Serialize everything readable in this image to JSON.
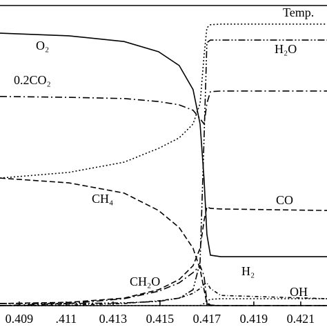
{
  "chart_data": {
    "type": "line",
    "x": [
      0.40818,
      0.41112,
      0.41347,
      0.41494,
      0.41582,
      0.41641,
      0.41671,
      0.41688,
      0.417,
      0.41715,
      0.41759,
      0.42212
    ],
    "xlim": [
      0.40818,
      0.42212
    ],
    "xticks": [
      0.409,
      {
        "value": 0.411,
        "label": ".411"
      },
      0.413,
      0.415,
      0.417,
      0.419,
      0.421
    ],
    "ylim": [
      0,
      1
    ],
    "series": [
      {
        "name": "O₂",
        "color": "#000000",
        "dash": "none",
        "values": [
          0.908,
          0.899,
          0.88,
          0.846,
          0.8,
          0.72,
          0.605,
          0.421,
          0.237,
          0.168,
          0.163,
          0.163
        ]
      },
      {
        "name": "0.2CO₂",
        "color": "#000000",
        "dash": "10,4,2,4",
        "values": [
          0.697,
          0.694,
          0.69,
          0.68,
          0.669,
          0.651,
          0.623,
          0.605,
          0.674,
          0.713,
          0.715,
          0.715
        ]
      },
      {
        "name": "Temp.",
        "color": "#000000",
        "dash": "2,3",
        "values": [
          0.425,
          0.444,
          0.478,
          0.524,
          0.559,
          0.605,
          0.674,
          0.834,
          0.926,
          0.936,
          0.938,
          0.938
        ]
      },
      {
        "name": "H₂O",
        "color": "#000000",
        "dash": "10,3,2,3,2,3",
        "values": [
          0.007,
          0.007,
          0.009,
          0.014,
          0.025,
          0.053,
          0.145,
          0.559,
          0.876,
          0.885,
          0.885,
          0.885
        ]
      },
      {
        "name": "CH₄",
        "color": "#000000",
        "dash": "8,4",
        "values": [
          0.425,
          0.409,
          0.375,
          0.317,
          0.26,
          0.191,
          0.122,
          0.053,
          0.007,
          0,
          0,
          0
        ]
      },
      {
        "name": "CO",
        "color": "#000000",
        "dash": "8,4",
        "values": [
          0.007,
          0.011,
          0.025,
          0.053,
          0.087,
          0.133,
          0.191,
          0.283,
          0.329,
          0.324,
          0.322,
          0.317
        ]
      },
      {
        "name": "CH₂O",
        "color": "#000000",
        "dash": "10,4,2,4",
        "values": [
          0,
          0.007,
          0.023,
          0.048,
          0.076,
          0.11,
          0.133,
          0.099,
          0.011,
          0.002,
          0,
          0
        ]
      },
      {
        "name": "H₂",
        "color": "#000000",
        "dash": "5,3,1,3",
        "values": [
          0,
          0.002,
          0.007,
          0.016,
          0.025,
          0.041,
          0.057,
          0.071,
          0.076,
          0.057,
          0.034,
          0.023
        ]
      },
      {
        "name": "OH",
        "color": "#000000",
        "dash": "2,3",
        "values": [
          0,
          0,
          0,
          0,
          0,
          0,
          0,
          0.007,
          0.016,
          0.021,
          0.023,
          0.023
        ]
      }
    ]
  }
}
